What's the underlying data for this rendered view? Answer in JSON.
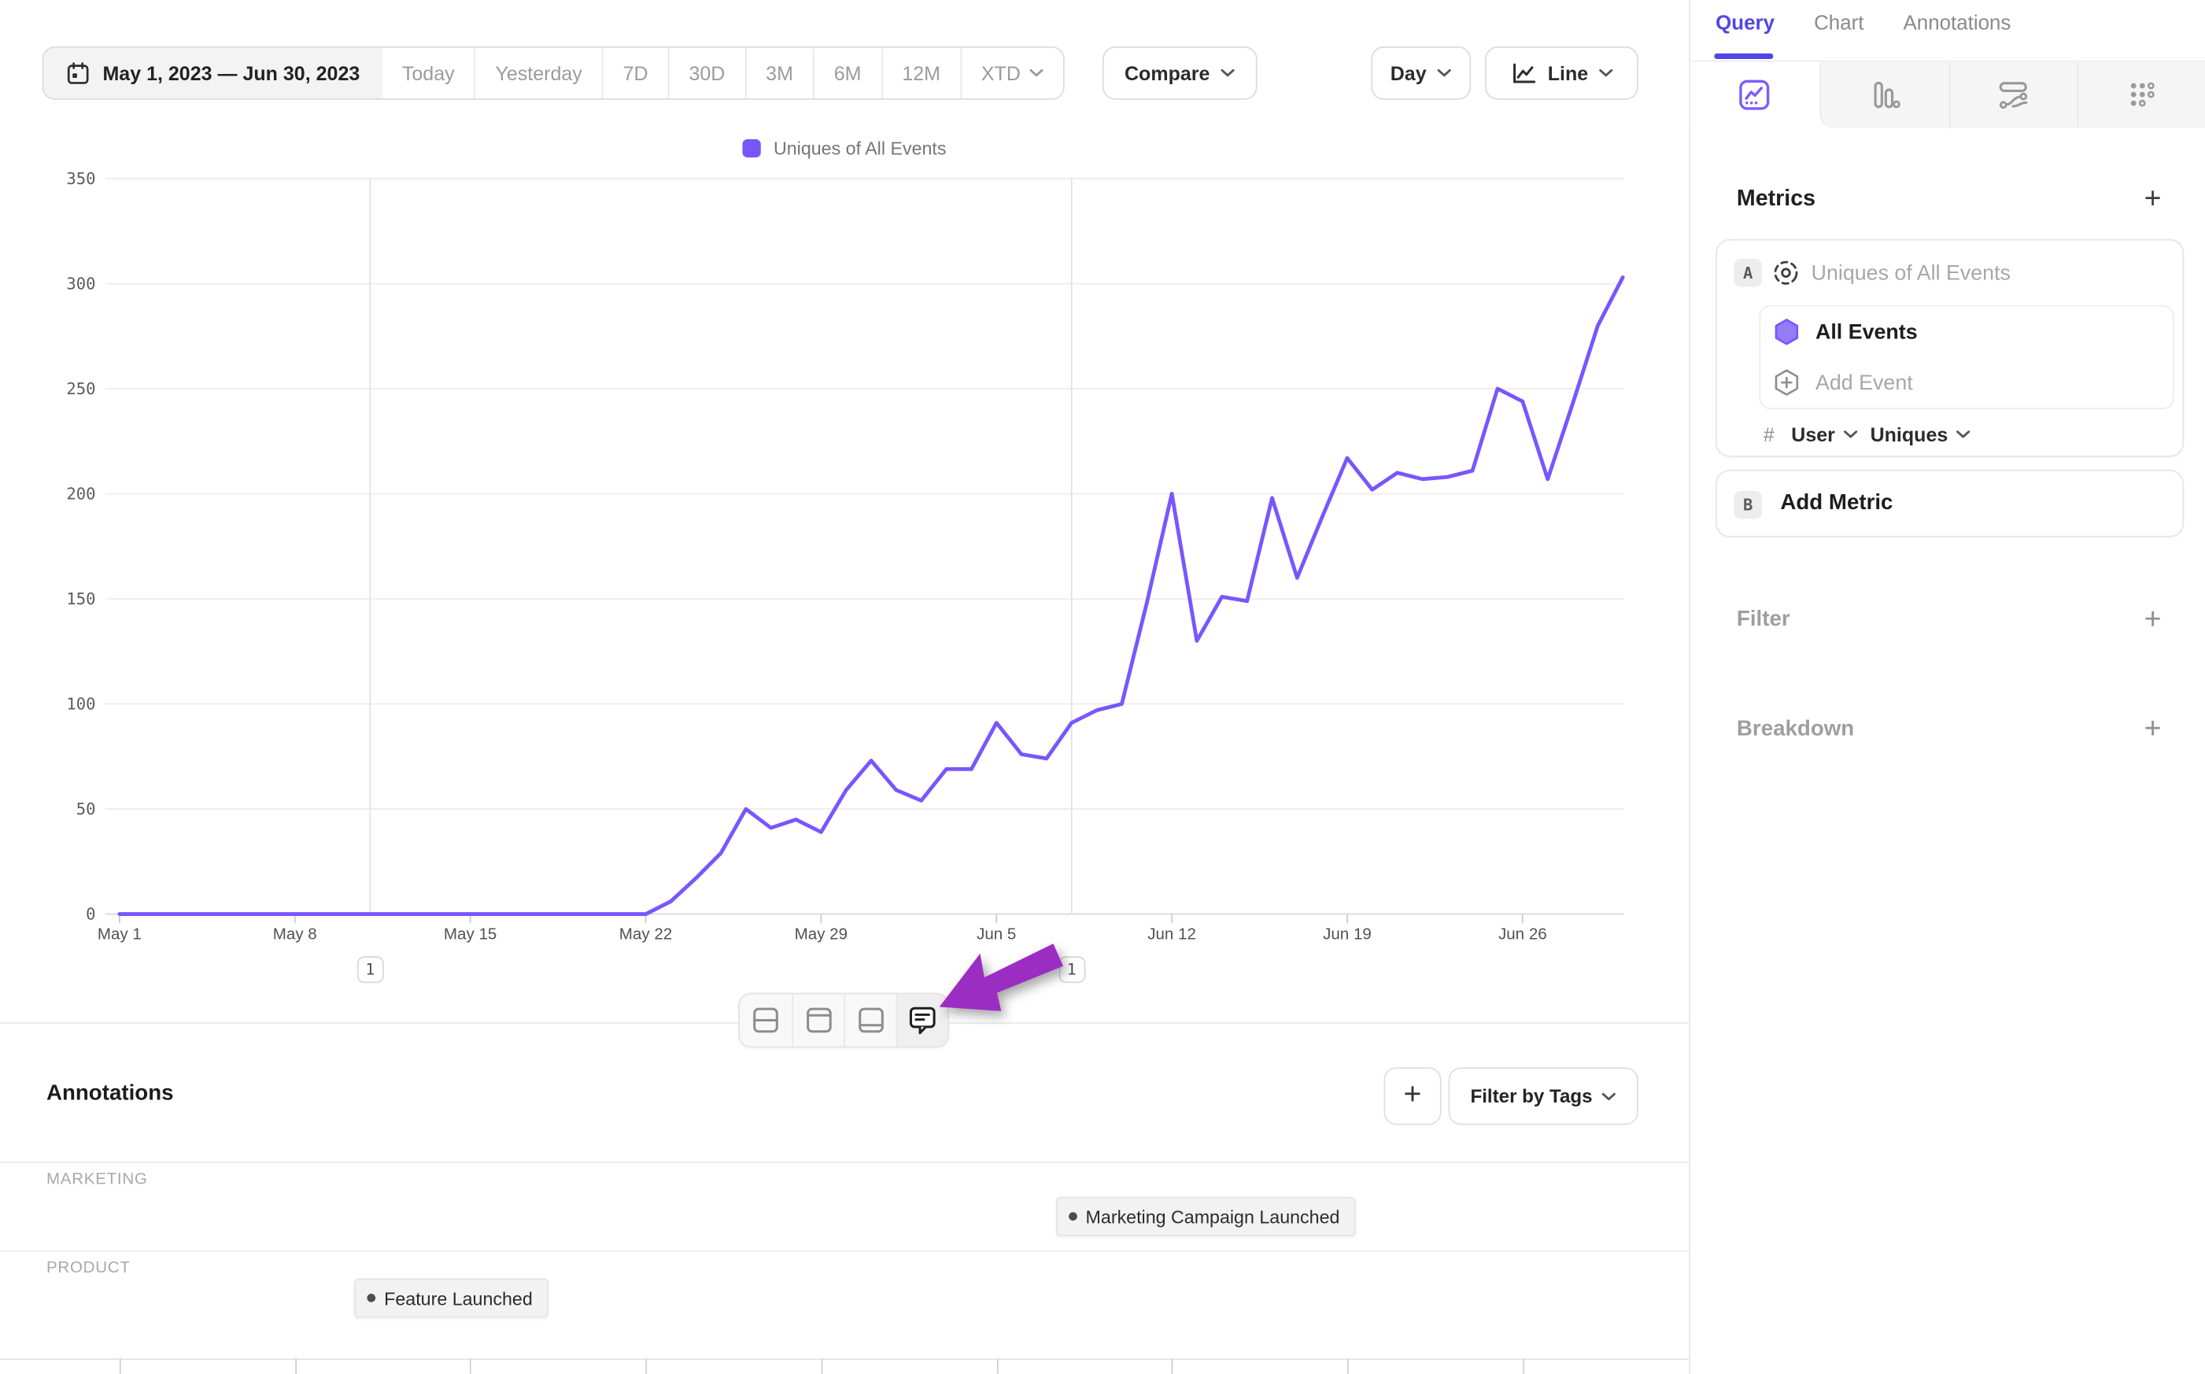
{
  "toolbar": {
    "date_range": "May 1, 2023 — Jun 30, 2023",
    "presets": [
      "Today",
      "Yesterday",
      "7D",
      "30D",
      "3M",
      "6M",
      "12M"
    ],
    "xtd_label": "XTD",
    "compare_label": "Compare",
    "granularity_label": "Day",
    "chart_type_label": "Line"
  },
  "legend": {
    "label": "Uniques of All Events",
    "swatch_color": "#7856ff"
  },
  "chart_data": {
    "type": "line",
    "x_unit": "day",
    "x_range": [
      "May 1, 2023",
      "Jun 30, 2023"
    ],
    "x_tick_labels": [
      "May 1",
      "May 8",
      "May 15",
      "May 22",
      "May 29",
      "Jun 5",
      "Jun 12",
      "Jun 19",
      "Jun 26"
    ],
    "y_ticks": [
      0,
      50,
      100,
      150,
      200,
      250,
      300,
      350
    ],
    "ylim": [
      0,
      350
    ],
    "grid": "horizontal",
    "legend_position": "top-center",
    "series": [
      {
        "name": "Uniques of All Events",
        "color": "#7856ff",
        "start_date": "May 1, 2023",
        "values": [
          0,
          0,
          0,
          0,
          0,
          0,
          0,
          0,
          0,
          0,
          0,
          0,
          0,
          0,
          0,
          0,
          0,
          0,
          0,
          0,
          0,
          0,
          6,
          17,
          29,
          50,
          41,
          45,
          39,
          59,
          73,
          59,
          54,
          69,
          69,
          91,
          76,
          74,
          91,
          97,
          100,
          148,
          200,
          130,
          151,
          149,
          198,
          160,
          189,
          217,
          202,
          210,
          207,
          208,
          211,
          250,
          244,
          207,
          243,
          280,
          303
        ]
      }
    ],
    "annotation_markers": [
      {
        "date": "May 11, 2023",
        "day_index": 10,
        "count": "1"
      },
      {
        "date": "Jun 8, 2023",
        "day_index": 38,
        "count": "1"
      }
    ]
  },
  "layout_toolbar": {
    "buttons": [
      "split-rows-layout",
      "top-panel-layout",
      "bottom-panel-layout",
      "annotations-comments"
    ],
    "highlighted": "annotations-comments"
  },
  "annotations_panel": {
    "title": "Annotations",
    "add_label": "+",
    "filter_by_tags_label": "Filter by Tags",
    "lanes": [
      {
        "category": "MARKETING",
        "items": [
          {
            "label": "Marketing Campaign Launched",
            "day_index": 38
          }
        ]
      },
      {
        "category": "PRODUCT",
        "items": [
          {
            "label": "Feature Launched",
            "day_index": 10
          }
        ]
      }
    ]
  },
  "sidebar": {
    "tabs": [
      {
        "label": "Query",
        "active": true
      },
      {
        "label": "Chart",
        "active": false
      },
      {
        "label": "Annotations",
        "active": false
      }
    ],
    "view_switcher": [
      "insights-line-chart",
      "funnel-bars",
      "flows",
      "retention-grid"
    ],
    "metrics": {
      "title": "Metrics",
      "add_label": "+",
      "rows": [
        {
          "badge": "A",
          "placeholder": "Uniques of All Events",
          "events": [
            {
              "label": "All Events"
            }
          ],
          "add_event_label": "Add Event",
          "counting": {
            "prefix": "#",
            "entity": "User",
            "aggregation": "Uniques"
          }
        },
        {
          "badge": "B",
          "label": "Add Metric"
        }
      ]
    },
    "filter": {
      "label": "Filter",
      "add_label": "+"
    },
    "breakdown": {
      "label": "Breakdown",
      "add_label": "+"
    }
  },
  "colors": {
    "accent_purple": "#7856ff",
    "tab_active_purple": "#4f46e5",
    "arrow_annotation": "#9c2dc2"
  }
}
